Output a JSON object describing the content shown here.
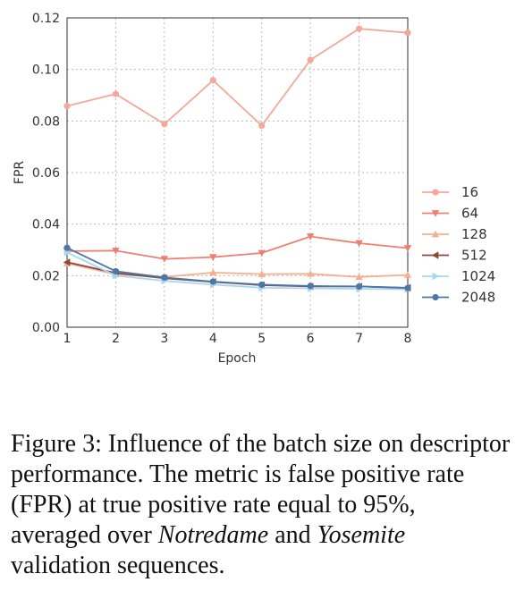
{
  "chart_data": {
    "type": "line",
    "xlabel": "Epoch",
    "ylabel": "FPR",
    "x": [
      1,
      2,
      3,
      4,
      5,
      6,
      7,
      8
    ],
    "xticks": [
      "1",
      "2",
      "3",
      "4",
      "5",
      "6",
      "7",
      "8"
    ],
    "yticks": [
      "0.00",
      "0.02",
      "0.04",
      "0.06",
      "0.08",
      "0.10",
      "0.12"
    ],
    "xlim": [
      1,
      8
    ],
    "ylim": [
      0,
      0.12
    ],
    "grid": true,
    "legend_position": "right",
    "series": [
      {
        "name": "16",
        "color": "#f4a79b",
        "marker": "circle",
        "values": [
          0.0858,
          0.0905,
          0.0788,
          0.0958,
          0.0782,
          0.1037,
          0.1158,
          0.1142
        ]
      },
      {
        "name": "64",
        "color": "#ee7f72",
        "marker": "triangle-down",
        "values": [
          0.0295,
          0.0297,
          0.0265,
          0.0272,
          0.0288,
          0.0352,
          0.0326,
          0.0307
        ]
      },
      {
        "name": "128",
        "color": "#f6b08e",
        "marker": "triangle-up",
        "values": [
          0.0248,
          0.0205,
          0.0195,
          0.0212,
          0.0206,
          0.0207,
          0.0195,
          0.0203
        ]
      },
      {
        "name": "512",
        "color": "#8b4a3c",
        "marker": "triangle-left",
        "values": [
          0.0252,
          0.021,
          0.019,
          0.0176,
          0.0163,
          0.0158,
          0.0158,
          0.0153
        ]
      },
      {
        "name": "1024",
        "color": "#a9d6ef",
        "marker": "triangle-right",
        "values": [
          0.029,
          0.02,
          0.018,
          0.0165,
          0.0153,
          0.0151,
          0.0149,
          0.0147
        ]
      },
      {
        "name": "2048",
        "color": "#4a77a8",
        "marker": "circle",
        "values": [
          0.0308,
          0.0217,
          0.0193,
          0.0177,
          0.0165,
          0.016,
          0.0158,
          0.0152
        ]
      }
    ]
  },
  "caption": {
    "prefix": "Figure 3: Influence of the batch size on descriptor performance. The metric is false positive rate (FPR) at true positive rate equal to 95%, averaged over ",
    "italic1": "Notredame",
    "middle": " and ",
    "italic2": "Yosemite",
    "suffix": " validation sequences."
  }
}
